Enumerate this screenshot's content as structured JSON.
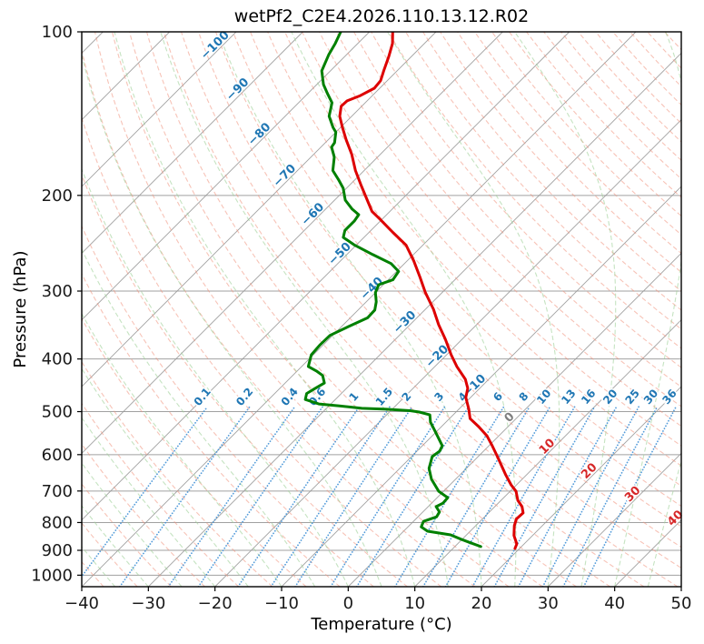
{
  "title": "wetPf2_C2E4.2026.110.13.12.R02",
  "axes": {
    "x_label": "Temperature (°C)",
    "y_label": "Pressure (hPa)",
    "x_ticks": [
      -40,
      -30,
      -20,
      -10,
      0,
      10,
      20,
      30,
      40,
      50
    ],
    "y_ticks": [
      100,
      200,
      300,
      400,
      500,
      600,
      700,
      800,
      900,
      1000
    ],
    "t_range": [
      -40,
      50
    ],
    "p_range": [
      100,
      1050
    ],
    "skew": 45,
    "grid": true
  },
  "colors": {
    "temperature_curve": "#dd0000",
    "dewpoint_curve": "#008000",
    "isotherm": "#979797",
    "pressure_grid": "#979797",
    "dry_adiabat": "#f0917c",
    "moist_adiabat": "#9ed098",
    "mixing_line": "#4191d6",
    "label_cold": "#2077b4",
    "label_zero": "#7f7f7f",
    "label_warm": "#d62728",
    "frame": "#000000"
  },
  "chart_data": {
    "type": "line",
    "title": "wetPf2_C2E4.2026.110.13.12.R02",
    "xlabel": "Temperature (°C)",
    "ylabel": "Pressure (hPa)",
    "x_range": [
      -40,
      50
    ],
    "p_range": [
      100,
      1050
    ],
    "grid_families": {
      "isotherms_c": {
        "min": -160,
        "max": 50,
        "step": 10
      },
      "dry_adiabats_theta_c": {
        "min": -45,
        "max": 195,
        "step": 5
      },
      "moist_adiabats_t0_c": {
        "min": -60,
        "max": 45,
        "step": 5
      },
      "mixing_ratio_g_kg": [
        0.1,
        0.2,
        0.4,
        0.6,
        1,
        1.5,
        2,
        3,
        4,
        6,
        8,
        10,
        13,
        16,
        20,
        25,
        30,
        36
      ],
      "mixing_line_top_p": 490,
      "mixing_label_p": 476
    },
    "isotherm_labels": [
      {
        "t": -100,
        "p": 107
      },
      {
        "t": -90,
        "p": 129
      },
      {
        "t": -80,
        "p": 156
      },
      {
        "t": -70,
        "p": 186
      },
      {
        "t": -60,
        "p": 219
      },
      {
        "t": -50,
        "p": 259
      },
      {
        "t": -40,
        "p": 300
      },
      {
        "t": -30,
        "p": 346
      },
      {
        "t": -20,
        "p": 400
      },
      {
        "t": -10,
        "p": 453
      },
      {
        "t": 0,
        "p": 518
      },
      {
        "t": 10,
        "p": 586
      },
      {
        "t": 20,
        "p": 650
      },
      {
        "t": 30,
        "p": 717
      },
      {
        "t": 40,
        "p": 794
      }
    ],
    "series": [
      {
        "name": "temperature",
        "color": "#dd0000",
        "points_p_t": [
          [
            100,
            -76.5
          ],
          [
            105,
            -74.8
          ],
          [
            111,
            -73.4
          ],
          [
            118,
            -72.0
          ],
          [
            123,
            -71.0
          ],
          [
            127,
            -70.8
          ],
          [
            131,
            -71.8
          ],
          [
            134,
            -73.0
          ],
          [
            137,
            -73.1
          ],
          [
            143,
            -71.8
          ],
          [
            150,
            -69.7
          ],
          [
            158,
            -67.3
          ],
          [
            168,
            -64.3
          ],
          [
            180,
            -61.3
          ],
          [
            191,
            -58.4
          ],
          [
            204,
            -55.1
          ],
          [
            214,
            -52.7
          ],
          [
            221,
            -50.4
          ],
          [
            234,
            -46.4
          ],
          [
            247,
            -42.5
          ],
          [
            264,
            -39.0
          ],
          [
            283,
            -35.6
          ],
          [
            302,
            -32.5
          ],
          [
            324,
            -28.8
          ],
          [
            346,
            -25.7
          ],
          [
            368,
            -22.5
          ],
          [
            393,
            -19.3
          ],
          [
            413,
            -16.7
          ],
          [
            436,
            -13.5
          ],
          [
            453,
            -11.8
          ],
          [
            471,
            -10.7
          ],
          [
            495,
            -8.5
          ],
          [
            515,
            -6.9
          ],
          [
            533,
            -4.4
          ],
          [
            554,
            -1.8
          ],
          [
            578,
            0.5
          ],
          [
            605,
            2.9
          ],
          [
            629,
            4.9
          ],
          [
            654,
            6.9
          ],
          [
            682,
            9.2
          ],
          [
            701,
            10.9
          ],
          [
            728,
            12.5
          ],
          [
            748,
            14.1
          ],
          [
            768,
            15.2
          ],
          [
            788,
            15.1
          ],
          [
            811,
            15.8
          ],
          [
            845,
            17.2
          ],
          [
            876,
            18.9
          ],
          [
            893,
            19.3
          ]
        ]
      },
      {
        "name": "dewpoint",
        "color": "#008000",
        "points_p_t": [
          [
            100,
            -84.3
          ],
          [
            105,
            -83.4
          ],
          [
            110,
            -82.7
          ],
          [
            118,
            -81.3
          ],
          [
            125,
            -79.0
          ],
          [
            130,
            -77.0
          ],
          [
            135,
            -75.0
          ],
          [
            143,
            -73.4
          ],
          [
            150,
            -71.1
          ],
          [
            153,
            -70.0
          ],
          [
            160,
            -68.6
          ],
          [
            163,
            -68.4
          ],
          [
            170,
            -66.5
          ],
          [
            180,
            -64.7
          ],
          [
            187,
            -62.5
          ],
          [
            194,
            -60.5
          ],
          [
            204,
            -58.4
          ],
          [
            212,
            -56.0
          ],
          [
            217,
            -54.2
          ],
          [
            223,
            -53.9
          ],
          [
            232,
            -53.9
          ],
          [
            239,
            -53.1
          ],
          [
            247,
            -50.2
          ],
          [
            257,
            -46.1
          ],
          [
            267,
            -42.0
          ],
          [
            276,
            -39.7
          ],
          [
            286,
            -39.3
          ],
          [
            292,
            -40.7
          ],
          [
            302,
            -40.0
          ],
          [
            314,
            -38.5
          ],
          [
            325,
            -37.5
          ],
          [
            336,
            -37.4
          ],
          [
            349,
            -39.0
          ],
          [
            362,
            -40.4
          ],
          [
            377,
            -40.5
          ],
          [
            393,
            -40.3
          ],
          [
            413,
            -39.0
          ],
          [
            421,
            -37.1
          ],
          [
            429,
            -35.5
          ],
          [
            443,
            -34.1
          ],
          [
            455,
            -34.8
          ],
          [
            463,
            -35.2
          ],
          [
            475,
            -34.5
          ],
          [
            484,
            -31.8
          ],
          [
            488,
            -28.4
          ],
          [
            493,
            -24.7
          ],
          [
            495,
            -20.9
          ],
          [
            498,
            -17.1
          ],
          [
            501,
            -15.5
          ],
          [
            507,
            -13.5
          ],
          [
            523,
            -12.3
          ],
          [
            543,
            -10.3
          ],
          [
            578,
            -7.0
          ],
          [
            591,
            -6.6
          ],
          [
            605,
            -6.9
          ],
          [
            636,
            -5.6
          ],
          [
            666,
            -3.6
          ],
          [
            701,
            -0.7
          ],
          [
            720,
            1.6
          ],
          [
            737,
            1.7
          ],
          [
            748,
            1.2
          ],
          [
            765,
            2.5
          ],
          [
            781,
            2.8
          ],
          [
            796,
            1.5
          ],
          [
            815,
            2.0
          ],
          [
            830,
            3.6
          ],
          [
            843,
            7.6
          ],
          [
            860,
            10.0
          ],
          [
            870,
            11.5
          ],
          [
            886,
            13.9
          ]
        ]
      }
    ]
  }
}
